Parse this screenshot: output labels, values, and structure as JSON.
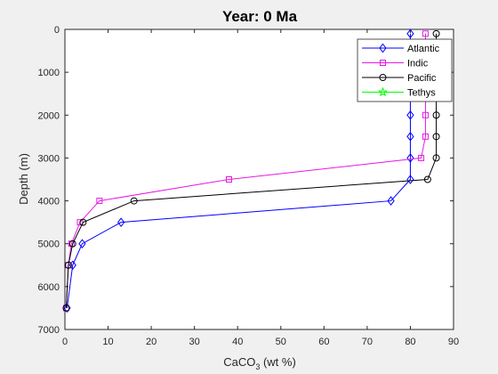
{
  "figure_background": "#f0f0f0",
  "chart_data": {
    "type": "line",
    "title": "Year: 0 Ma",
    "xlabel_main": "CaCO",
    "xlabel_sub": "3",
    "xlabel_tail": " (wt %)",
    "ylabel": "Depth (m)",
    "xlim": [
      0,
      90
    ],
    "ylim": [
      0,
      7000
    ],
    "y_reversed": true,
    "xticks": [
      0,
      10,
      20,
      30,
      40,
      50,
      60,
      70,
      80,
      90
    ],
    "yticks": [
      0,
      1000,
      2000,
      3000,
      4000,
      5000,
      6000,
      7000
    ],
    "grid": false,
    "legend_position": "top-right",
    "series": [
      {
        "name": "Atlantic",
        "color": "#0000ff",
        "marker": "diamond",
        "points": [
          [
            80,
            100
          ],
          [
            80,
            1000
          ],
          [
            80,
            2000
          ],
          [
            80,
            2500
          ],
          [
            80,
            3000
          ],
          [
            80,
            3500
          ],
          [
            75.5,
            4000
          ],
          [
            13,
            4500
          ],
          [
            4,
            5000
          ],
          [
            1.8,
            5500
          ],
          [
            0.5,
            6500
          ]
        ]
      },
      {
        "name": "Indic",
        "color": "#e619e6",
        "marker": "square",
        "points": [
          [
            83.5,
            100
          ],
          [
            83.5,
            1000
          ],
          [
            83.5,
            2000
          ],
          [
            83.5,
            2500
          ],
          [
            82.5,
            3000
          ],
          [
            38,
            3500
          ],
          [
            8,
            4000
          ],
          [
            3.5,
            4500
          ],
          [
            1.5,
            5000
          ],
          [
            0.8,
            5500
          ],
          [
            0.3,
            6500
          ]
        ]
      },
      {
        "name": "Pacific",
        "color": "#000000",
        "marker": "circle",
        "points": [
          [
            86,
            100
          ],
          [
            86,
            1000
          ],
          [
            86,
            2000
          ],
          [
            86,
            2500
          ],
          [
            86,
            3000
          ],
          [
            84,
            3500
          ],
          [
            16,
            4000
          ],
          [
            4.2,
            4500
          ],
          [
            1.8,
            5000
          ],
          [
            0.8,
            5500
          ],
          [
            0.3,
            6500
          ]
        ]
      },
      {
        "name": "Tethys",
        "color": "#00ff00",
        "marker": "pentagram",
        "points": []
      }
    ]
  }
}
